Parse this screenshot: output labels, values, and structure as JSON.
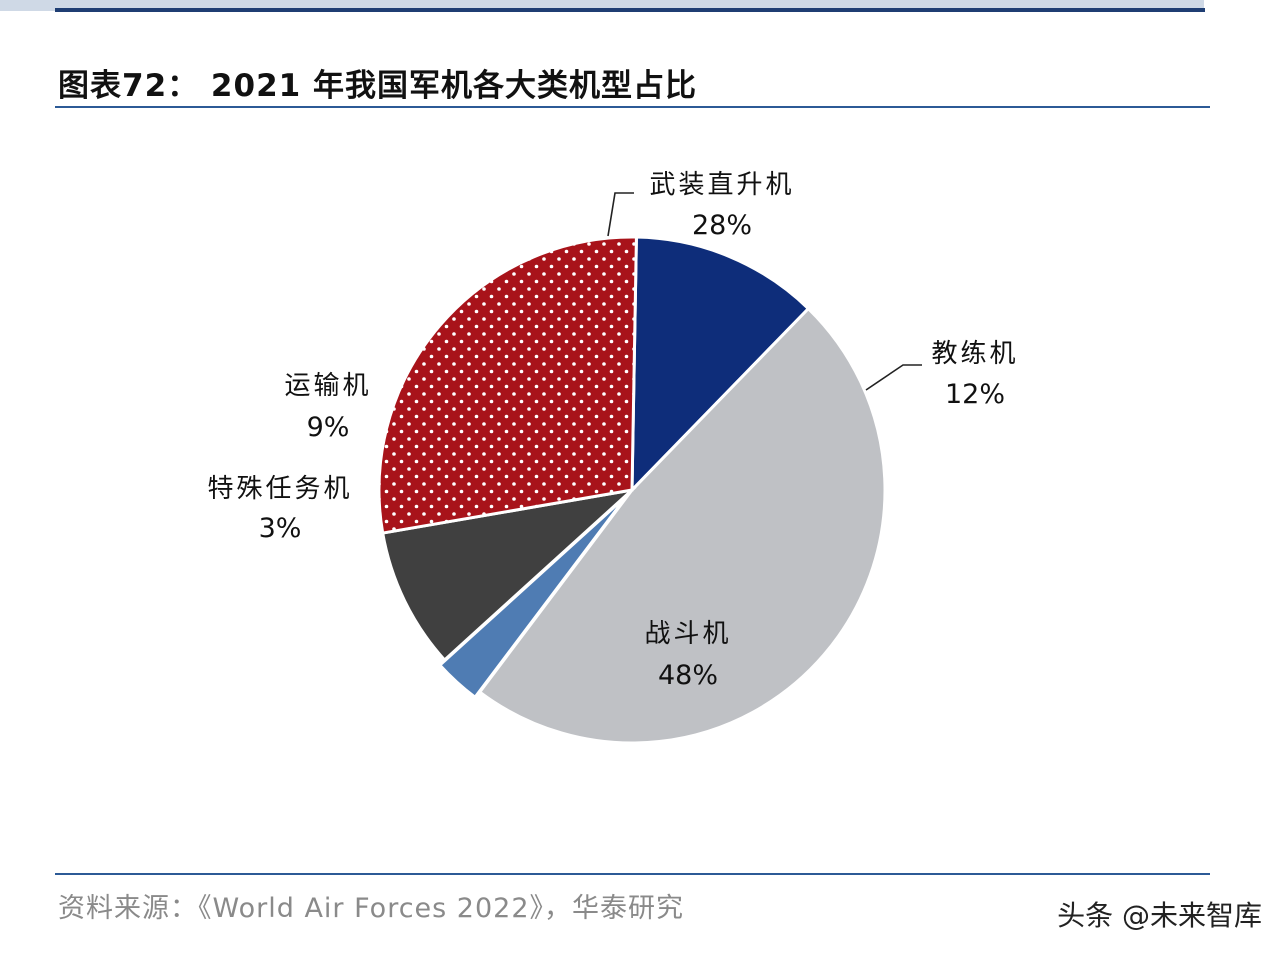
{
  "title": "图表72：  2021 年我国军机各大类机型占比",
  "source": "资料来源：《World Air Forces 2022》，华泰研究",
  "watermark": "头条 @未来智库",
  "colors": {
    "accent": "#1f3e73",
    "rule": "#2c5a96"
  },
  "chart_data": {
    "type": "pie",
    "title": "2021 年我国军机各大类机型占比",
    "start_angle_deg": 89,
    "direction": "clockwise",
    "slices": [
      {
        "label": "教练机",
        "value": 12,
        "pct_label": "12%",
        "color": "#0e2d7a",
        "pattern": "solid"
      },
      {
        "label": "战斗机",
        "value": 48,
        "pct_label": "48%",
        "color": "#bfc1c5",
        "pattern": "solid"
      },
      {
        "label": "特殊任务机",
        "value": 3,
        "pct_label": "3%",
        "color": "#4f7cb3",
        "pattern": "solid"
      },
      {
        "label": "运输机",
        "value": 9,
        "pct_label": "9%",
        "color": "#404040",
        "pattern": "solid"
      },
      {
        "label": "武装直升机",
        "value": 28,
        "pct_label": "28%",
        "color": "#a8131a",
        "pattern": "white-dots"
      }
    ]
  }
}
